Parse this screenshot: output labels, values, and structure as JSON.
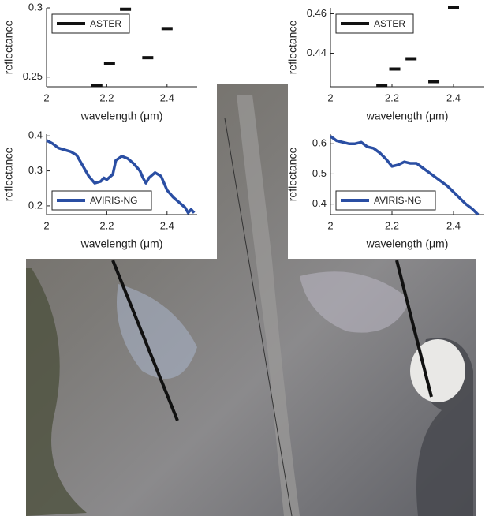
{
  "chart_data": [
    {
      "type": "scatter",
      "x": [
        2.167,
        2.209,
        2.262,
        2.336,
        2.4
      ],
      "series": [
        {
          "name": "ASTER",
          "color": "#111111",
          "values": [
            0.244,
            0.26,
            0.299,
            0.264,
            0.285
          ]
        }
      ],
      "xlim": [
        2,
        2.5
      ],
      "xticks": [
        2,
        2.2,
        2.4
      ],
      "ylim": [
        0.243,
        0.3
      ],
      "yticks": [
        0.25,
        0.3
      ],
      "x_label": "wavelength (μm)",
      "y_label": "reflectance",
      "legend": "upper left"
    },
    {
      "type": "scatter",
      "x": [
        2.167,
        2.209,
        2.262,
        2.336,
        2.4
      ],
      "series": [
        {
          "name": "ASTER",
          "color": "#111111",
          "values": [
            0.4236,
            0.432,
            0.4372,
            0.4256,
            0.463
          ]
        }
      ],
      "xlim": [
        2,
        2.5
      ],
      "xticks": [
        2,
        2.2,
        2.4
      ],
      "ylim": [
        0.423,
        0.463
      ],
      "yticks": [
        0.44,
        0.46
      ],
      "x_label": "wavelength (μm)",
      "y_label": "reflectance",
      "legend": "upper left"
    },
    {
      "type": "line",
      "x": [
        2.0,
        2.02,
        2.04,
        2.06,
        2.08,
        2.1,
        2.12,
        2.14,
        2.16,
        2.18,
        2.19,
        2.2,
        2.22,
        2.23,
        2.25,
        2.27,
        2.29,
        2.31,
        2.32,
        2.33,
        2.34,
        2.36,
        2.38,
        2.4,
        2.42,
        2.44,
        2.46,
        2.47,
        2.48,
        2.49
      ],
      "series": [
        {
          "name": "AVIRIS-NG",
          "color": "#2a4ea3",
          "values": [
            0.387,
            0.378,
            0.365,
            0.36,
            0.355,
            0.345,
            0.315,
            0.285,
            0.265,
            0.27,
            0.28,
            0.275,
            0.29,
            0.33,
            0.342,
            0.335,
            0.32,
            0.3,
            0.28,
            0.265,
            0.28,
            0.295,
            0.285,
            0.245,
            0.225,
            0.21,
            0.195,
            0.18,
            0.19,
            0.18
          ]
        }
      ],
      "xlim": [
        2,
        2.5
      ],
      "xticks": [
        2,
        2.2,
        2.4
      ],
      "ylim": [
        0.175,
        0.405
      ],
      "yticks": [
        0.2,
        0.3,
        0.4
      ],
      "x_label": "wavelength (μm)",
      "y_label": "reflectance",
      "legend": "lower left"
    },
    {
      "type": "line",
      "x": [
        2.0,
        2.02,
        2.04,
        2.06,
        2.08,
        2.1,
        2.12,
        2.14,
        2.16,
        2.18,
        2.2,
        2.22,
        2.24,
        2.26,
        2.28,
        2.3,
        2.32,
        2.34,
        2.36,
        2.38,
        2.4,
        2.42,
        2.44,
        2.46,
        2.48
      ],
      "series": [
        {
          "name": "AVIRIS-NG",
          "color": "#2a4ea3",
          "values": [
            0.625,
            0.61,
            0.605,
            0.6,
            0.6,
            0.605,
            0.59,
            0.585,
            0.57,
            0.55,
            0.525,
            0.53,
            0.54,
            0.535,
            0.535,
            0.52,
            0.505,
            0.49,
            0.475,
            0.46,
            0.44,
            0.42,
            0.4,
            0.385,
            0.365
          ]
        }
      ],
      "xlim": [
        2,
        2.5
      ],
      "xticks": [
        2,
        2.2,
        2.4
      ],
      "ylim": [
        0.365,
        0.632
      ],
      "yticks": [
        0.4,
        0.5,
        0.6
      ],
      "x_label": "wavelength (μm)",
      "y_label": "reflectance",
      "legend": "lower left"
    }
  ]
}
